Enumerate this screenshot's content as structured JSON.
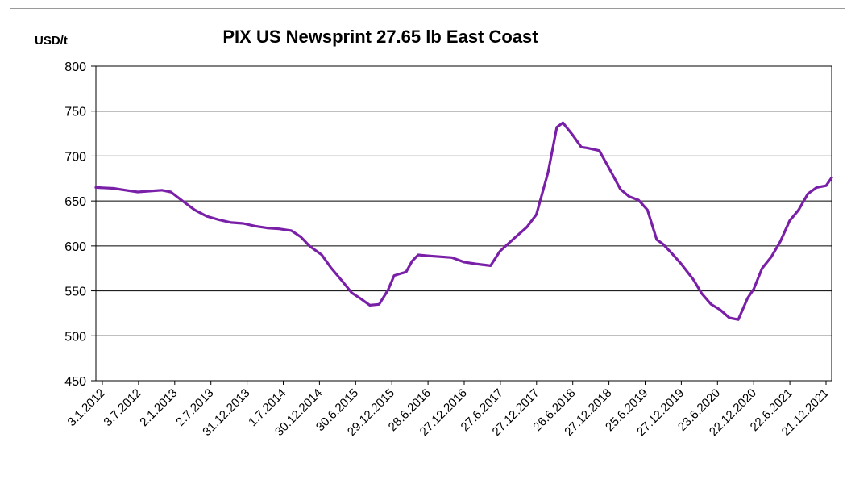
{
  "chart_data": {
    "type": "line",
    "title": "PIX US Newsprint 27.65 lb East Coast",
    "ylabel": "USD/t",
    "xlabel": "",
    "ylim": [
      450,
      800
    ],
    "y_ticks": [
      450,
      500,
      550,
      600,
      650,
      700,
      750,
      800
    ],
    "grid": "horizontal",
    "colors": {
      "line": "#7a1fa8",
      "grid": "#000000",
      "axis": "#000000"
    },
    "x_tick_labels": [
      "3.1.2012",
      "3.7.2012",
      "2.1.2013",
      "2.7.2013",
      "31.12.2013",
      "1.7.2014",
      "30.12.2014",
      "30.6.2015",
      "29.12.2015",
      "28.6.2016",
      "27.12.2016",
      "27.6.2017",
      "27.12.2017",
      "26.6.2018",
      "27.12.2018",
      "25.6.2019",
      "27.12.2019",
      "23.6.2020",
      "22.12.2020",
      "22.6.2021",
      "21.12.2021"
    ],
    "series": [
      {
        "x": [
          "2012-01-03",
          "2012-04-01",
          "2012-06-01",
          "2012-08-01",
          "2012-10-01",
          "2012-12-01",
          "2013-01-15",
          "2013-03-15",
          "2013-05-15",
          "2013-07-15",
          "2013-09-15",
          "2013-11-15",
          "2014-01-15",
          "2014-03-15",
          "2014-05-15",
          "2014-07-15",
          "2014-09-15",
          "2014-11-01",
          "2014-12-15",
          "2015-02-15",
          "2015-04-01",
          "2015-06-01",
          "2015-07-15",
          "2015-09-01",
          "2015-10-15",
          "2015-12-01",
          "2016-01-15",
          "2016-02-15",
          "2016-03-15",
          "2016-04-15",
          "2016-05-15",
          "2016-06-15",
          "2016-08-01",
          "2016-10-01",
          "2016-12-01",
          "2017-02-01",
          "2017-04-01",
          "2017-06-15",
          "2017-08-01",
          "2017-10-15",
          "2017-12-15",
          "2018-02-01",
          "2018-04-01",
          "2018-05-15",
          "2018-06-15",
          "2018-08-01",
          "2018-09-15",
          "2018-10-15",
          "2018-12-15",
          "2019-02-01",
          "2019-04-01",
          "2019-05-15",
          "2019-07-01",
          "2019-08-15",
          "2019-10-01",
          "2019-11-01",
          "2019-12-15",
          "2020-02-01",
          "2020-04-01",
          "2020-05-15",
          "2020-07-01",
          "2020-08-15",
          "2020-10-01",
          "2020-11-15",
          "2021-01-01",
          "2021-02-01",
          "2021-03-15",
          "2021-05-01",
          "2021-06-15",
          "2021-08-01",
          "2021-09-15",
          "2021-11-01",
          "2021-12-15",
          "2022-02-01",
          "2022-03-01"
        ],
        "values": [
          665,
          664,
          662,
          660,
          661,
          662,
          660,
          650,
          640,
          633,
          629,
          626,
          625,
          622,
          620,
          619,
          617,
          610,
          600,
          590,
          576,
          560,
          548,
          541,
          534,
          535,
          551,
          567,
          569,
          571,
          583,
          590,
          589,
          588,
          587,
          582,
          580,
          578,
          594,
          609,
          621,
          635,
          682,
          732,
          737,
          724,
          710,
          709,
          706,
          687,
          663,
          655,
          651,
          640,
          607,
          602,
          592,
          580,
          563,
          547,
          535,
          529,
          520,
          518,
          542,
          552,
          575,
          588,
          605,
          628,
          640,
          658,
          665,
          667,
          676
        ]
      }
    ]
  }
}
